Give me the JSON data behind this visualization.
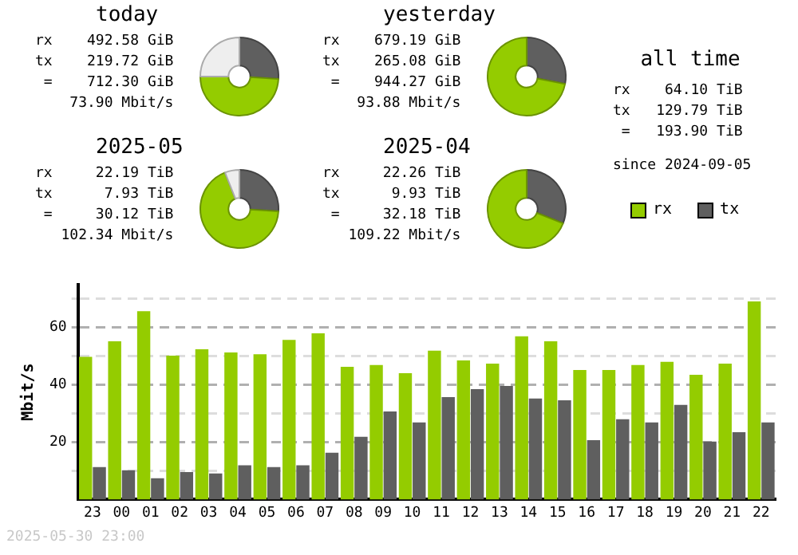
{
  "chart_data": [
    {
      "type": "donut",
      "title": "today",
      "categories": [
        null,
        null,
        null
      ],
      "values": [
        26,
        49,
        25
      ],
      "colors": [
        "#5f5f5f",
        "#94cc00",
        "#eeeeee"
      ],
      "annotations": [
        "rx    492.58 GiB",
        "tx    219.72 GiB",
        " =    712.30 GiB",
        "    73.90 Mbit/s"
      ]
    },
    {
      "type": "donut",
      "title": "yesterday",
      "categories": [
        null,
        null
      ],
      "values": [
        28,
        72
      ],
      "colors": [
        "#5f5f5f",
        "#94cc00"
      ],
      "annotations": [
        "rx    679.19 GiB",
        "tx    265.08 GiB",
        " =    944.27 GiB",
        "    93.88 Mbit/s"
      ]
    },
    {
      "type": "donut",
      "title": "2025-05",
      "categories": [
        null,
        null,
        null
      ],
      "values": [
        26,
        68,
        6
      ],
      "colors": [
        "#5f5f5f",
        "#94cc00",
        "#eeeeee"
      ],
      "annotations": [
        "rx     22.19 TiB",
        "tx      7.93 TiB",
        " =     30.12 TiB",
        "   102.34 Mbit/s"
      ]
    },
    {
      "type": "donut",
      "title": "2025-04",
      "categories": [
        null,
        null
      ],
      "values": [
        31,
        69
      ],
      "colors": [
        "#5f5f5f",
        "#94cc00"
      ],
      "annotations": [
        "rx     22.26 TiB",
        "tx      9.93 TiB",
        " =     32.18 TiB",
        "   109.22 Mbit/s"
      ]
    },
    {
      "type": "other",
      "title": "all time",
      "annotations": [
        "rx    64.10 TiB",
        "tx   129.79 TiB",
        " =   193.90 TiB",
        "since 2024-09-05"
      ]
    },
    {
      "type": "bar",
      "ylabel": "Mbit/s",
      "legend": "top right",
      "grid": "y",
      "ylim": [
        0,
        75
      ],
      "yticks": [
        {
          "value": 10,
          "label": null
        },
        20,
        {
          "value": 30,
          "label": null
        },
        40,
        {
          "value": 50,
          "label": null
        },
        60,
        {
          "value": 70,
          "label": null
        }
      ],
      "categories": [
        "23",
        "00",
        "01",
        "02",
        "03",
        "04",
        "05",
        "06",
        "07",
        "08",
        "09",
        "10",
        "11",
        "12",
        "13",
        "14",
        "15",
        "16",
        "17",
        "18",
        "19",
        "20",
        "21",
        "22"
      ],
      "series": [
        {
          "name": "rx",
          "color": "#94cc00",
          "values": [
            49.8,
            55.2,
            65.7,
            50.2,
            52.4,
            51.3,
            50.7,
            55.7,
            58,
            46.3,
            46.9,
            44.1,
            51.9,
            48.5,
            47.4,
            56.9,
            55.2,
            45.2,
            45.2,
            46.9,
            48,
            43.5,
            47.4,
            69.1
          ]
        },
        {
          "name": "tx",
          "color": "#5f5f5f",
          "values": [
            11.3,
            10.2,
            7.4,
            9.6,
            9.1,
            11.9,
            11.3,
            11.9,
            16.3,
            21.9,
            30.7,
            26.9,
            35.7,
            38.5,
            39.6,
            35.2,
            34.6,
            20.7,
            28,
            26.9,
            33,
            20.2,
            23.5,
            26.9
          ]
        }
      ],
      "annotations": [
        "2025-05-30 23:00"
      ]
    }
  ]
}
